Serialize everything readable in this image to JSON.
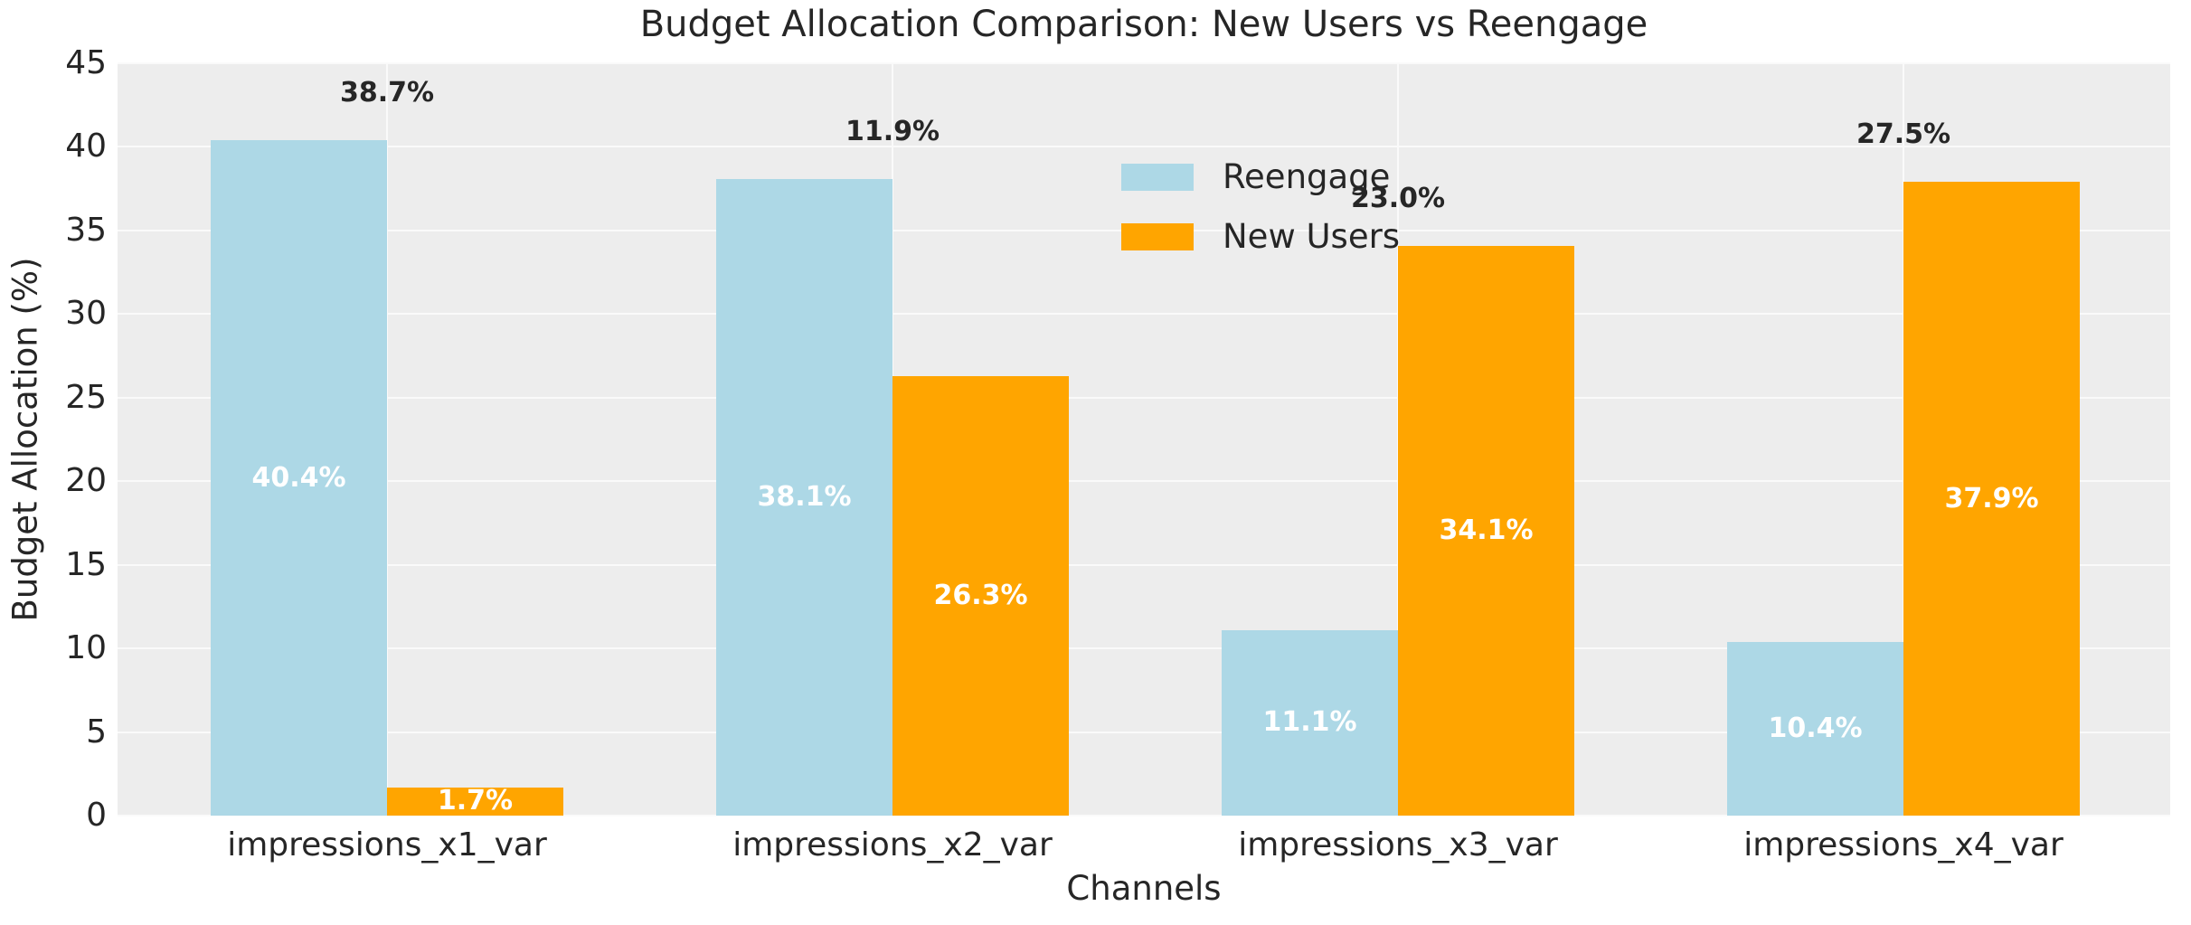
{
  "chart_data": {
    "type": "bar",
    "title": "Budget Allocation Comparison: New Users vs Reengage",
    "xlabel": "Channels",
    "ylabel": "Budget Allocation (%)",
    "categories": [
      "impressions_x1_var",
      "impressions_x2_var",
      "impressions_x3_var",
      "impressions_x4_var"
    ],
    "series": [
      {
        "name": "Reengage",
        "color": "#ADD8E6",
        "values": [
          40.4,
          38.1,
          11.1,
          10.4
        ],
        "bar_labels": [
          "40.4%",
          "38.1%",
          "11.1%",
          "10.4%"
        ]
      },
      {
        "name": "New Users",
        "color": "#FFA500",
        "values": [
          1.7,
          26.3,
          34.1,
          37.9
        ],
        "bar_labels": [
          "1.7%",
          "26.3%",
          "34.1%",
          "37.9%"
        ]
      }
    ],
    "difference_labels": [
      "38.7%",
      "11.9%",
      "23.0%",
      "27.5%"
    ],
    "ylim": [
      0,
      45
    ],
    "yticks": [
      0,
      5,
      10,
      15,
      20,
      25,
      30,
      35,
      40,
      45
    ],
    "grid": true,
    "legend": {
      "position": "upper center",
      "entries": [
        "Reengage",
        "New Users"
      ]
    },
    "style": {
      "plot_bg": "#EDEDED",
      "grid_color": "#FAFAFA",
      "text_color": "#262626",
      "bar_label_color": "#FFFFFF"
    }
  }
}
